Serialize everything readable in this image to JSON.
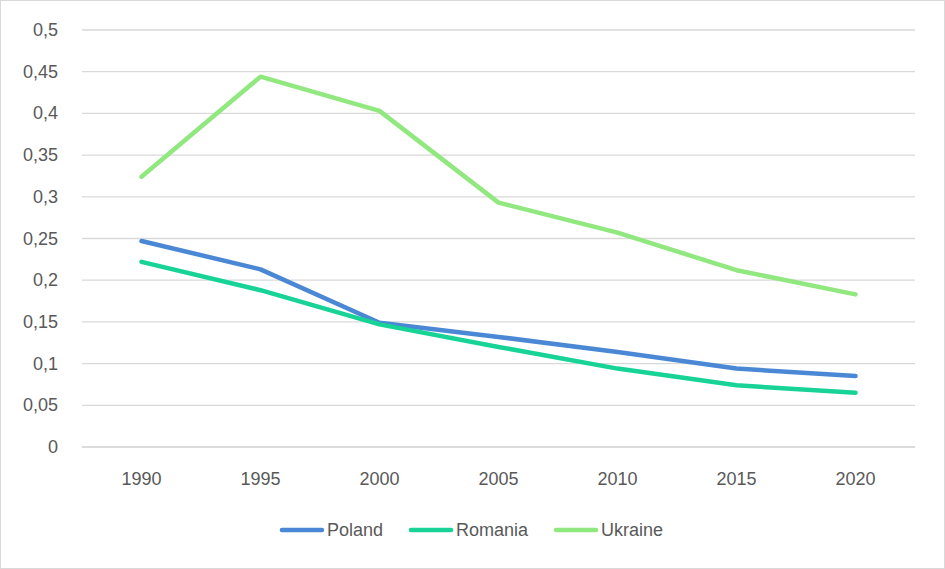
{
  "chart_data": {
    "type": "line",
    "categories": [
      "1990",
      "1995",
      "2000",
      "2005",
      "2010",
      "2015",
      "2020"
    ],
    "series": [
      {
        "name": "Poland",
        "color": "#4a88d5",
        "values": [
          0.247,
          0.213,
          0.149,
          0.132,
          0.114,
          0.094,
          0.085
        ]
      },
      {
        "name": "Romania",
        "color": "#17d396",
        "values": [
          0.222,
          0.188,
          0.147,
          0.12,
          0.094,
          0.074,
          0.065
        ]
      },
      {
        "name": "Ukraine",
        "color": "#90e87f",
        "values": [
          0.324,
          0.444,
          0.403,
          0.293,
          0.257,
          0.212,
          0.183
        ]
      }
    ],
    "ylim": [
      0,
      0.5
    ],
    "yticks": [
      0,
      {
        "value": 0.05,
        "label": "0,05"
      },
      {
        "value": 0.1,
        "label": "0,1"
      },
      {
        "value": 0.15,
        "label": "0,15"
      },
      {
        "value": 0.2,
        "label": "0,2"
      },
      {
        "value": 0.25,
        "label": "0,25"
      },
      {
        "value": 0.3,
        "label": "0,3"
      },
      {
        "value": 0.35,
        "label": "0,35"
      },
      {
        "value": 0.4,
        "label": "0,4"
      },
      {
        "value": 0.45,
        "label": "0,45"
      },
      {
        "value": 0.5,
        "label": "0,5"
      }
    ],
    "grid": true,
    "legend": "bottom"
  }
}
